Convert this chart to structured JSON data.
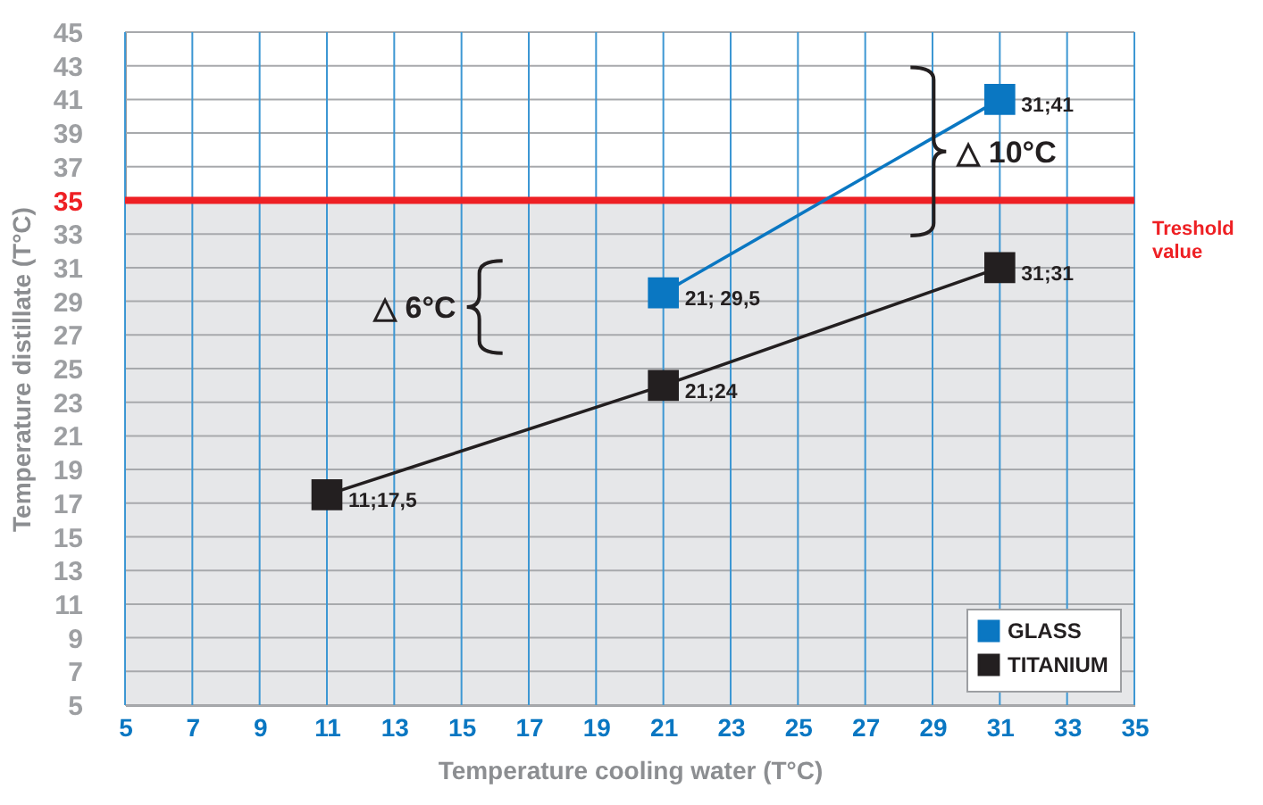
{
  "chart_data": {
    "type": "line",
    "xlabel": "Temperature cooling water (T°C)",
    "ylabel": "Temperature distillate (T°C)",
    "xlim": [
      5,
      35
    ],
    "xticks": [
      5,
      7,
      9,
      11,
      13,
      15,
      17,
      19,
      21,
      23,
      25,
      27,
      29,
      31,
      33,
      35
    ],
    "ylim": [
      5,
      45
    ],
    "yticks": [
      5,
      7,
      9,
      11,
      13,
      15,
      17,
      19,
      21,
      23,
      25,
      27,
      29,
      31,
      33,
      35,
      37,
      39,
      41,
      43,
      45
    ],
    "grid": true,
    "marker": "square",
    "legend": "bottom right",
    "series": [
      {
        "name": "GLASS",
        "color": "#0a77c2",
        "x": [
          21,
          31
        ],
        "values": [
          29.5,
          41
        ],
        "value_labels": [
          "21; 29,5",
          "31;41"
        ]
      },
      {
        "name": "TITANIUM",
        "color": "#231f20",
        "x": [
          11,
          21,
          31
        ],
        "values": [
          17.5,
          24,
          31
        ],
        "value_labels": [
          "11;17,5",
          "21;24",
          "31;31"
        ]
      }
    ],
    "ref_lines": [
      {
        "axis": "y",
        "value": 35,
        "label": "Treshold value",
        "color": "#ee2024"
      }
    ],
    "bands": [
      {
        "axis": "y",
        "from": 5,
        "to": 35,
        "color": "#e6e7e9"
      }
    ],
    "annotations": [
      "△ 6°C",
      "△ 10°C"
    ]
  }
}
